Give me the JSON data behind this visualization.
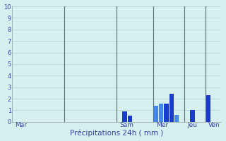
{
  "xlabel": "Précipitations 24h ( mm )",
  "ylim": [
    0,
    10
  ],
  "yticks": [
    0,
    1,
    2,
    3,
    4,
    5,
    6,
    7,
    8,
    9,
    10
  ],
  "background_color": "#d6f0f0",
  "bar_color_dark": "#1a3ccc",
  "bar_color_light": "#4488ee",
  "grid_color": "#b0d0d0",
  "text_color": "#3344aa",
  "vline_color": "#556688",
  "figsize": [
    3.2,
    2.0
  ],
  "dpi": 100,
  "n_total": 40,
  "bars": [
    0,
    0,
    0,
    0,
    0,
    0,
    0,
    0,
    0,
    0,
    0,
    0,
    0,
    0,
    0,
    0,
    0,
    0,
    0,
    0,
    0,
    0.9,
    0.55,
    0,
    0,
    0,
    0,
    1.4,
    1.55,
    1.6,
    2.45,
    0.6,
    0,
    0,
    1.0,
    0,
    0,
    2.3,
    0,
    0
  ],
  "bar_colors_individual": [
    "d",
    "d",
    "d",
    "d",
    "d",
    "d",
    "d",
    "d",
    "d",
    "d",
    "d",
    "d",
    "d",
    "d",
    "d",
    "d",
    "d",
    "d",
    "d",
    "d",
    "d",
    "d",
    "d",
    "d",
    "d",
    "d",
    "d",
    "l",
    "l",
    "d",
    "d",
    "l",
    "d",
    "d",
    "d",
    "d",
    "d",
    "d",
    "d",
    "d"
  ],
  "day_separators": [
    10,
    20,
    27,
    33,
    37
  ],
  "day_labels": [
    {
      "label": "Mar",
      "x": 0
    },
    {
      "label": "Sam",
      "x": 20
    },
    {
      "label": "Mer",
      "x": 27
    },
    {
      "label": "Jeu",
      "x": 33
    },
    {
      "label": "Ven",
      "x": 37
    }
  ]
}
